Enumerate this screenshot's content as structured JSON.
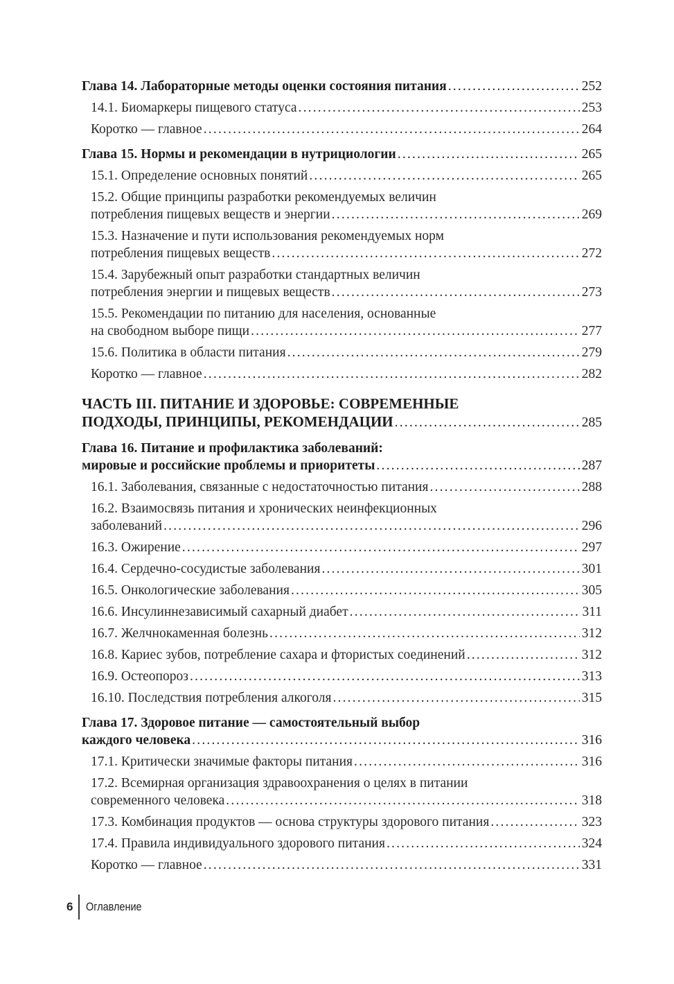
{
  "toc": [
    {
      "type": "chapter",
      "lines": [
        "Глава 14. Лабораторные методы оценки состояния питания"
      ],
      "page": "252"
    },
    {
      "type": "section",
      "lines": [
        "14.1. Биомаркеры пищевого статуса"
      ],
      "page": "253"
    },
    {
      "type": "section",
      "lines": [
        "Коротко — главное"
      ],
      "page": "264"
    },
    {
      "type": "chapter",
      "lines": [
        "Глава 15. Нормы и рекомендации в нутрициологии"
      ],
      "page": "265"
    },
    {
      "type": "section",
      "lines": [
        "15.1. Определение основных понятий"
      ],
      "page": "265"
    },
    {
      "type": "section",
      "lines": [
        "15.2. Общие принципы разработки рекомендуемых величин",
        "потребления пищевых веществ и энергии"
      ],
      "page": "269"
    },
    {
      "type": "section",
      "lines": [
        "15.3. Назначение и пути использования рекомендуемых норм",
        "потребления пищевых веществ"
      ],
      "page": "272"
    },
    {
      "type": "section",
      "lines": [
        "15.4. Зарубежный опыт разработки стандартных величин",
        "потребления энергии и пищевых веществ"
      ],
      "page": "273"
    },
    {
      "type": "section",
      "lines": [
        "15.5. Рекомендации по питанию для населения, основанные",
        "на свободном выборе пищи"
      ],
      "page": "277"
    },
    {
      "type": "section",
      "lines": [
        "15.6. Политика в области питания"
      ],
      "page": "279"
    },
    {
      "type": "section",
      "lines": [
        "Коротко — главное"
      ],
      "page": "282"
    },
    {
      "type": "part",
      "lines": [
        "ЧАСТЬ III. ПИТАНИЕ И ЗДОРОВЬЕ: СОВРЕМЕННЫЕ",
        "ПОДХОДЫ, ПРИНЦИПЫ, РЕКОМЕНДАЦИИ"
      ],
      "page": "285"
    },
    {
      "type": "chapter",
      "lines": [
        "Глава 16. Питание и профилактика заболеваний:",
        "мировые и российские проблемы и приоритеты"
      ],
      "page": "287"
    },
    {
      "type": "section",
      "lines": [
        "16.1. Заболевания, связанные с недостаточностью питания"
      ],
      "page": "288"
    },
    {
      "type": "section",
      "lines": [
        "16.2. Взаимосвязь питания и хронических неинфекционных",
        "заболеваний"
      ],
      "page": "296"
    },
    {
      "type": "section",
      "lines": [
        "16.3. Ожирение"
      ],
      "page": "297"
    },
    {
      "type": "section",
      "lines": [
        "16.4. Сердечно-сосудистые заболевания"
      ],
      "page": "301"
    },
    {
      "type": "section",
      "lines": [
        "16.5. Онкологические заболевания"
      ],
      "page": "305"
    },
    {
      "type": "section",
      "lines": [
        "16.6. Инсулиннезависимый сахарный диабет"
      ],
      "page": "311"
    },
    {
      "type": "section",
      "lines": [
        "16.7. Желчнокаменная болезнь"
      ],
      "page": "312"
    },
    {
      "type": "section",
      "lines": [
        "16.8. Кариес зубов, потребление сахара и фтористых соединений"
      ],
      "page": "312"
    },
    {
      "type": "section",
      "lines": [
        "16.9. Остеопороз"
      ],
      "page": "313"
    },
    {
      "type": "section",
      "lines": [
        "16.10. Последствия потребления алкоголя"
      ],
      "page": "315"
    },
    {
      "type": "chapter",
      "lines": [
        "Глава 17. Здоровое питание — самостоятельный выбор",
        "каждого человека"
      ],
      "page": "316"
    },
    {
      "type": "section",
      "lines": [
        "17.1. Критически значимые факторы питания"
      ],
      "page": "316"
    },
    {
      "type": "section",
      "lines": [
        "17.2. Всемирная организация здравоохранения о целях в питании",
        "современного человека"
      ],
      "page": "318"
    },
    {
      "type": "section",
      "lines": [
        "17.3. Комбинация продуктов — основа структуры здорового питания"
      ],
      "page": "323"
    },
    {
      "type": "section",
      "lines": [
        "17.4. Правила индивидуального здорового питания"
      ],
      "page": "324"
    },
    {
      "type": "section",
      "lines": [
        "Коротко — главное"
      ],
      "page": "331"
    }
  ],
  "footer": {
    "page_number": "6",
    "running_title": "Оглавление"
  }
}
